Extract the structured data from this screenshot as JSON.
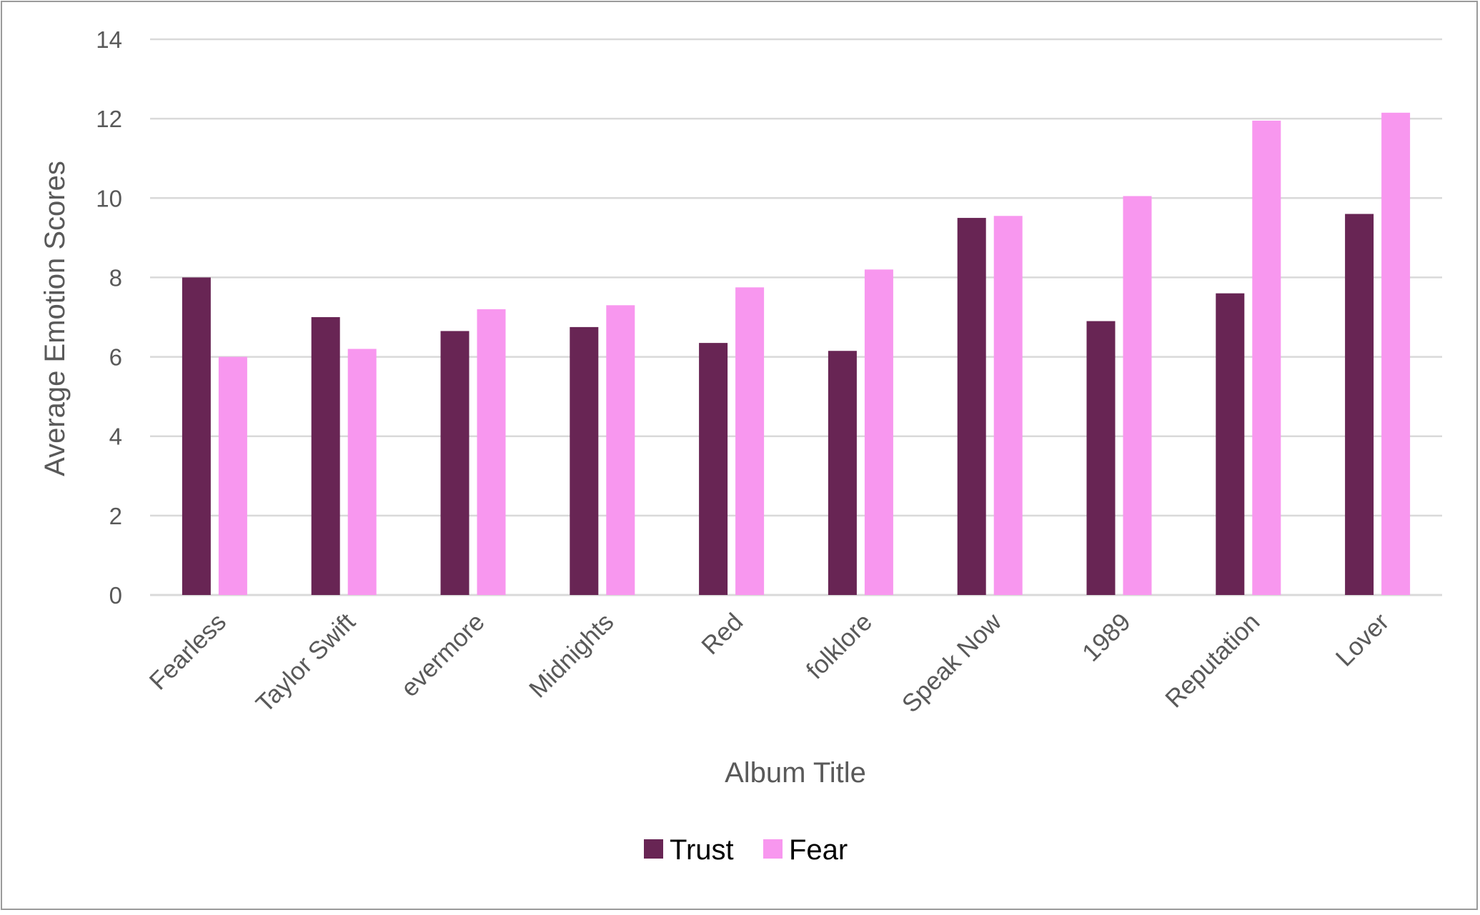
{
  "chart_data": {
    "type": "bar",
    "title": "",
    "xlabel": "Album Title",
    "ylabel": "Average Emotion Scores",
    "ylim": [
      0,
      14
    ],
    "yticks": [
      0,
      2,
      4,
      6,
      8,
      10,
      12,
      14
    ],
    "grid": true,
    "legend_position": "bottom",
    "categories": [
      "Fearless",
      "Taylor Swift",
      "evermore",
      "Midnights",
      "Red",
      "folklore",
      "Speak Now",
      "1989",
      "Reputation",
      "Lover"
    ],
    "series": [
      {
        "name": "Trust",
        "color": "#682554",
        "values": [
          8.0,
          7.0,
          6.65,
          6.75,
          6.35,
          6.15,
          9.5,
          6.9,
          7.6,
          9.6
        ]
      },
      {
        "name": "Fear",
        "color": "#f897ef",
        "values": [
          6.0,
          6.2,
          7.2,
          7.3,
          7.75,
          8.2,
          9.55,
          10.05,
          11.95,
          12.15
        ]
      }
    ]
  }
}
